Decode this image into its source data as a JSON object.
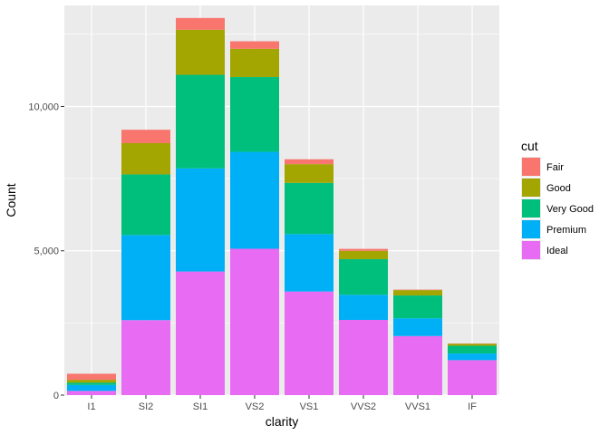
{
  "chart_data": {
    "type": "bar",
    "stacked": true,
    "title": "",
    "xlabel": "clarity",
    "ylabel": "Count",
    "categories": [
      "I1",
      "SI2",
      "SI1",
      "VS2",
      "VS1",
      "VVS2",
      "VVS1",
      "IF"
    ],
    "ylim": [
      0,
      13500
    ],
    "yticks": [
      0,
      5000,
      10000
    ],
    "ytick_labels": [
      "0",
      "5,000",
      "10,000"
    ],
    "grid": true,
    "legend": {
      "title": "cut",
      "position": "right"
    },
    "series": [
      {
        "name": "Ideal",
        "color": "#E76BF3",
        "values": [
          146,
          2598,
          4282,
          5071,
          3589,
          2606,
          2047,
          1212
        ]
      },
      {
        "name": "Premium",
        "color": "#00B0F6",
        "values": [
          205,
          2949,
          3575,
          3357,
          1989,
          870,
          616,
          230
        ]
      },
      {
        "name": "Very Good",
        "color": "#00BF7D",
        "values": [
          84,
          2100,
          3240,
          2591,
          1775,
          1235,
          789,
          268
        ]
      },
      {
        "name": "Good",
        "color": "#A3A500",
        "values": [
          96,
          1081,
          1560,
          978,
          648,
          286,
          186,
          71
        ]
      },
      {
        "name": "Fair",
        "color": "#F8766D",
        "values": [
          210,
          466,
          408,
          261,
          170,
          69,
          17,
          9
        ]
      }
    ],
    "legend_order": [
      "Fair",
      "Good",
      "Very Good",
      "Premium",
      "Ideal"
    ],
    "colors": {
      "panel_background": "#EBEBEB",
      "gridline": "#FFFFFF",
      "tick_label": "#4D4D4D"
    }
  }
}
